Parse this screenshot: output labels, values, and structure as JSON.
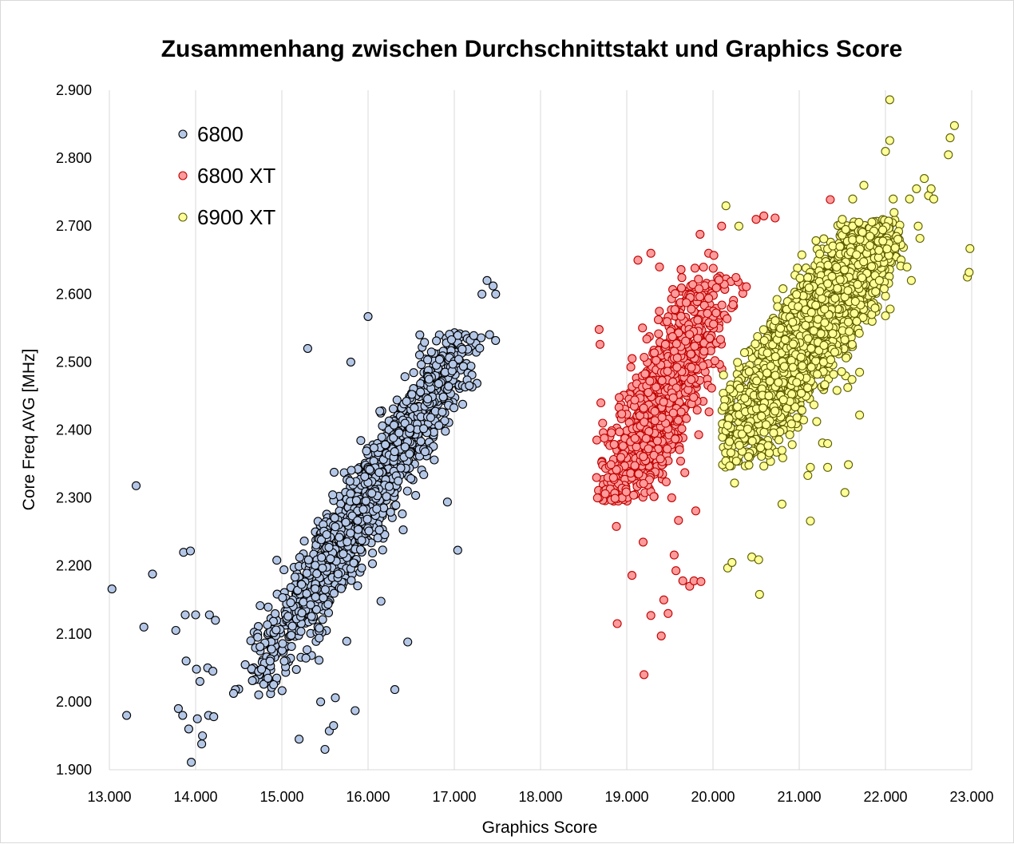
{
  "chart_data": {
    "type": "scatter",
    "title": "Zusammenhang zwischen Durchschnittstakt und Graphics Score",
    "xlabel": "Graphics Score",
    "ylabel": "Core Freq AVG [MHz]",
    "xlim": [
      13000,
      23000
    ],
    "ylim": [
      1900,
      2900
    ],
    "x_ticks": [
      13000,
      14000,
      15000,
      16000,
      17000,
      18000,
      19000,
      20000,
      21000,
      22000,
      23000
    ],
    "y_ticks": [
      1900,
      2000,
      2100,
      2200,
      2300,
      2400,
      2500,
      2600,
      2700,
      2800,
      2900
    ],
    "x_tick_labels": [
      "13.000",
      "14.000",
      "15.000",
      "16.000",
      "17.000",
      "18.000",
      "19.000",
      "20.000",
      "21.000",
      "22.000",
      "23.000"
    ],
    "y_tick_labels": [
      "1.900",
      "2.000",
      "2.100",
      "2.200",
      "2.300",
      "2.400",
      "2.500",
      "2.600",
      "2.700",
      "2.800",
      "2.900"
    ],
    "grid": "vertical",
    "legend": "top-left",
    "series": [
      {
        "name": "6800",
        "color": "#b4c7e7",
        "stroke": "#000000",
        "cluster": {
          "n": 1300,
          "x_mean": 16000,
          "x_sd": 700,
          "slope": 0.2,
          "y_at_mean": 2300,
          "y_sd": 40,
          "x_range": [
            14400,
            17600
          ],
          "y_range": [
            2010,
            2545
          ]
        },
        "points": [
          [
            13030,
            2166
          ],
          [
            13200,
            1980
          ],
          [
            13310,
            2318
          ],
          [
            13400,
            2110
          ],
          [
            13500,
            2188
          ],
          [
            13770,
            2105
          ],
          [
            13800,
            1990
          ],
          [
            13850,
            1980
          ],
          [
            13860,
            2220
          ],
          [
            13880,
            2128
          ],
          [
            13890,
            2060
          ],
          [
            13920,
            1960
          ],
          [
            13940,
            2222
          ],
          [
            13950,
            1911
          ],
          [
            14000,
            2128
          ],
          [
            14010,
            2048
          ],
          [
            14020,
            1975
          ],
          [
            14050,
            2030
          ],
          [
            14070,
            1938
          ],
          [
            14080,
            1950
          ],
          [
            14140,
            2050
          ],
          [
            14150,
            1980
          ],
          [
            14160,
            2128
          ],
          [
            14200,
            2045
          ],
          [
            14210,
            1978
          ],
          [
            14230,
            2120
          ],
          [
            15200,
            1945
          ],
          [
            15300,
            2520
          ],
          [
            15450,
            2000
          ],
          [
            15500,
            1930
          ],
          [
            15550,
            1957
          ],
          [
            15600,
            1965
          ],
          [
            15620,
            2006
          ],
          [
            15850,
            1987
          ],
          [
            16000,
            2567
          ],
          [
            16310,
            2018
          ],
          [
            16460,
            2088
          ],
          [
            16150,
            2148
          ],
          [
            16920,
            2294
          ],
          [
            17040,
            2223
          ],
          [
            17320,
            2600
          ],
          [
            17380,
            2620
          ],
          [
            17450,
            2612
          ],
          [
            17480,
            2600
          ],
          [
            15800,
            2500
          ],
          [
            16600,
            2540
          ]
        ]
      },
      {
        "name": "6800 XT",
        "color": "#ff9b9b",
        "stroke": "#c00000",
        "cluster": {
          "n": 1100,
          "x_mean": 19400,
          "x_sd": 380,
          "slope": 0.22,
          "y_at_mean": 2440,
          "y_sd": 55,
          "x_range": [
            18650,
            20400
          ],
          "y_range": [
            2295,
            2640
          ]
        },
        "points": [
          [
            18680,
            2548
          ],
          [
            18690,
            2526
          ],
          [
            18700,
            2440
          ],
          [
            18720,
            2410
          ],
          [
            18740,
            2388
          ],
          [
            18650,
            2330
          ],
          [
            18660,
            2300
          ],
          [
            18880,
            2258
          ],
          [
            18890,
            2115
          ],
          [
            19060,
            2186
          ],
          [
            19190,
            2235
          ],
          [
            19200,
            2040
          ],
          [
            19280,
            2127
          ],
          [
            19400,
            2097
          ],
          [
            19430,
            2150
          ],
          [
            19480,
            2130
          ],
          [
            19550,
            2216
          ],
          [
            19570,
            2193
          ],
          [
            19600,
            2267
          ],
          [
            19650,
            2178
          ],
          [
            19730,
            2170
          ],
          [
            19780,
            2178
          ],
          [
            19800,
            2281
          ],
          [
            19860,
            2177
          ],
          [
            19130,
            2650
          ],
          [
            19280,
            2660
          ],
          [
            19380,
            2640
          ],
          [
            19850,
            2688
          ],
          [
            19950,
            2660
          ],
          [
            20010,
            2657
          ],
          [
            20720,
            2712
          ],
          [
            20500,
            2710
          ],
          [
            20590,
            2715
          ],
          [
            21360,
            2739
          ],
          [
            20100,
            2700
          ]
        ]
      },
      {
        "name": "6900 XT",
        "color": "#ffff99",
        "stroke": "#5c5c00",
        "cluster": {
          "n": 3000,
          "x_mean": 21100,
          "x_sd": 500,
          "slope": 0.16,
          "y_at_mean": 2540,
          "y_sd": 42,
          "x_range": [
            20100,
            22250
          ],
          "y_range": [
            2345,
            2710
          ]
        },
        "points": [
          [
            20150,
            2730
          ],
          [
            20170,
            2197
          ],
          [
            20220,
            2205
          ],
          [
            20250,
            2322
          ],
          [
            20300,
            2700
          ],
          [
            20450,
            2213
          ],
          [
            20530,
            2209
          ],
          [
            20540,
            2158
          ],
          [
            20800,
            2291
          ],
          [
            20800,
            2370
          ],
          [
            21100,
            2333
          ],
          [
            21130,
            2266
          ],
          [
            21130,
            2345
          ],
          [
            21270,
            2381
          ],
          [
            21330,
            2380
          ],
          [
            21330,
            2345
          ],
          [
            21530,
            2308
          ],
          [
            21570,
            2349
          ],
          [
            21700,
            2422
          ],
          [
            21700,
            2485
          ],
          [
            21930,
            2620
          ],
          [
            22000,
            2568
          ],
          [
            22050,
            2886
          ],
          [
            22050,
            2826
          ],
          [
            22000,
            2810
          ],
          [
            22090,
            2740
          ],
          [
            22100,
            2720
          ],
          [
            22280,
            2740
          ],
          [
            22360,
            2755
          ],
          [
            22450,
            2770
          ],
          [
            22500,
            2745
          ],
          [
            22530,
            2755
          ],
          [
            22560,
            2740
          ],
          [
            22380,
            2700
          ],
          [
            22400,
            2682
          ],
          [
            22730,
            2805
          ],
          [
            22750,
            2830
          ],
          [
            22800,
            2848
          ],
          [
            22980,
            2667
          ],
          [
            22950,
            2625
          ],
          [
            22970,
            2632
          ],
          [
            21750,
            2760
          ],
          [
            21620,
            2740
          ],
          [
            21500,
            2710
          ],
          [
            22250,
            2640
          ],
          [
            22300,
            2620
          ]
        ]
      }
    ]
  }
}
